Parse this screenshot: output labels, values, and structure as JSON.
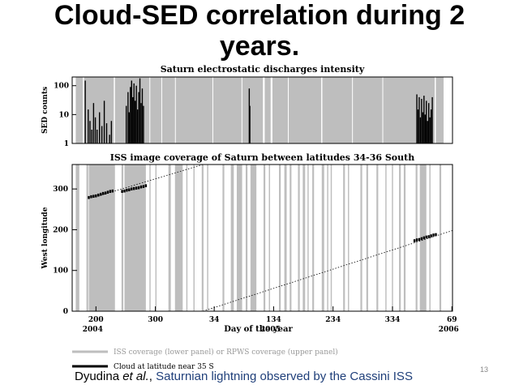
{
  "slide": {
    "title_line1": "Cloud-SED correlation during 2",
    "title_line2": "years.",
    "citation_author": "Dyudina",
    "citation_etal": "et al.",
    "citation_sep": ",",
    "citation_work": "Saturnian lightning observed by the Cassini ISS",
    "page_number": "13"
  },
  "colors": {
    "coverage": "#bebebe",
    "cloud": "#000000",
    "background": "#ffffff",
    "citation_accent": "#1f3f7a"
  },
  "chart_data": [
    {
      "type": "bar",
      "title": "Saturn electrostatic discharges intensity",
      "xlabel": "",
      "ylabel": "SED counts",
      "yscale": "log",
      "ylim": [
        1,
        200
      ],
      "yticks": [
        "1",
        "10",
        "100"
      ],
      "xlim": [
        160,
        800
      ],
      "notes": "day index counted from Jan 1 2004 (day 365 = 2005 day 1, day 730 = 2006 day 1); tick labels from lower panel",
      "coverage_gaps_days": [
        [
          160,
          166
        ],
        [
          178,
          180
        ],
        [
          230,
          232
        ],
        [
          290,
          291
        ],
        [
          310,
          311
        ],
        [
          333,
          334
        ],
        [
          396,
          397
        ],
        [
          445,
          446
        ],
        [
          481,
          484
        ],
        [
          494,
          497
        ],
        [
          523,
          524
        ],
        [
          579,
          581
        ],
        [
          631,
          632
        ],
        [
          682,
          683
        ],
        [
          770,
          772
        ],
        [
          785,
          800
        ]
      ],
      "series": [
        {
          "values_day": [
            [
              182,
              150
            ],
            [
              187,
              15
            ],
            [
              190,
              6
            ],
            [
              193,
              3
            ],
            [
              196,
              25
            ],
            [
              199,
              8
            ],
            [
              202,
              3
            ],
            [
              206,
              12
            ],
            [
              210,
              4
            ],
            [
              214,
              30
            ],
            [
              218,
              5
            ],
            [
              223,
              2
            ],
            [
              226,
              6
            ],
            [
              251,
              20
            ],
            [
              254,
              60
            ],
            [
              256,
              12
            ],
            [
              258,
              90
            ],
            [
              260,
              150
            ],
            [
              262,
              40
            ],
            [
              264,
              120
            ],
            [
              266,
              30
            ],
            [
              268,
              100
            ],
            [
              270,
              15
            ],
            [
              272,
              60
            ],
            [
              274,
              180
            ],
            [
              276,
              25
            ],
            [
              278,
              80
            ],
            [
              280,
              20
            ],
            [
              458,
              80
            ],
            [
              459,
              20
            ],
            [
              740,
              50
            ],
            [
              742,
              15
            ],
            [
              744,
              40
            ],
            [
              746,
              8
            ],
            [
              748,
              35
            ],
            [
              750,
              12
            ],
            [
              752,
              45
            ],
            [
              754,
              10
            ],
            [
              756,
              30
            ],
            [
              758,
              6
            ],
            [
              760,
              25
            ],
            [
              762,
              8
            ],
            [
              764,
              15
            ],
            [
              766,
              40
            ]
          ]
        }
      ]
    },
    {
      "type": "scatter",
      "title": "ISS image coverage of Saturn between latitudes 34-36 South",
      "xlabel": "Day of the year",
      "ylabel": "West longitude",
      "ylim": [
        0,
        360
      ],
      "yticks": [
        0,
        100,
        200,
        300
      ],
      "xlim": [
        160,
        800
      ],
      "xticks": [
        {
          "day": 200,
          "label": "200",
          "year": "2004"
        },
        {
          "day": 300,
          "label": "300",
          "year": ""
        },
        {
          "day": 399,
          "label": "34",
          "year": ""
        },
        {
          "day": 499,
          "label": "134",
          "year": "2005"
        },
        {
          "day": 599,
          "label": "234",
          "year": ""
        },
        {
          "day": 699,
          "label": "334",
          "year": ""
        },
        {
          "day": 799,
          "label": "69",
          "year": "2006"
        }
      ],
      "coverage_days": [
        [
          166,
          172
        ],
        [
          184,
          187
        ],
        [
          188,
          232
        ],
        [
          243,
          246
        ],
        [
          248,
          284
        ],
        [
          290,
          292
        ],
        [
          300,
          302
        ],
        [
          322,
          326
        ],
        [
          333,
          346
        ],
        [
          352,
          354
        ],
        [
          364,
          366
        ],
        [
          378,
          381
        ],
        [
          387,
          389
        ],
        [
          413,
          416
        ],
        [
          427,
          432
        ],
        [
          437,
          446
        ],
        [
          452,
          455
        ],
        [
          460,
          470
        ],
        [
          482,
          485
        ],
        [
          491,
          493
        ],
        [
          508,
          511
        ],
        [
          517,
          521
        ],
        [
          526,
          529
        ],
        [
          540,
          543
        ],
        [
          548,
          552
        ],
        [
          556,
          558
        ],
        [
          564,
          567
        ],
        [
          580,
          584
        ],
        [
          589,
          591
        ],
        [
          595,
          597
        ],
        [
          616,
          619
        ],
        [
          624,
          626
        ],
        [
          645,
          648
        ],
        [
          655,
          658
        ],
        [
          672,
          675
        ],
        [
          687,
          689
        ],
        [
          698,
          700
        ],
        [
          710,
          713
        ],
        [
          718,
          721
        ],
        [
          738,
          741
        ],
        [
          745,
          756
        ],
        [
          761,
          763
        ],
        [
          778,
          781
        ]
      ],
      "drift_lines": [
        {
          "from": [
            195,
            279
          ],
          "to": [
            380,
            360
          ]
        },
        {
          "from": [
            380,
            0
          ],
          "to": [
            800,
            198
          ]
        }
      ],
      "series": [
        {
          "points": [
            [
              188,
              279
            ],
            [
              192,
              281
            ],
            [
              196,
              282
            ],
            [
              200,
              283
            ],
            [
              204,
              285
            ],
            [
              208,
              287
            ],
            [
              212,
              289
            ],
            [
              216,
              290
            ],
            [
              220,
              292
            ],
            [
              224,
              294
            ],
            [
              228,
              295
            ],
            [
              244,
              294
            ],
            [
              248,
              295
            ],
            [
              252,
              297
            ],
            [
              256,
              298
            ],
            [
              260,
              300
            ],
            [
              264,
              301
            ],
            [
              268,
              302
            ],
            [
              272,
              303
            ],
            [
              276,
              305
            ],
            [
              280,
              306
            ],
            [
              284,
              308
            ],
            [
              736,
              173
            ],
            [
              740,
              175
            ],
            [
              744,
              176
            ],
            [
              748,
              178
            ],
            [
              752,
              180
            ],
            [
              756,
              182
            ],
            [
              760,
              183
            ],
            [
              764,
              185
            ],
            [
              768,
              187
            ],
            [
              772,
              188
            ]
          ]
        }
      ]
    }
  ],
  "legend": {
    "items": [
      {
        "label": "ISS coverage (lower panel) or RPWS coverage (upper panel)",
        "color": "#bebebe"
      },
      {
        "label": "Cloud at latitude near 35 S",
        "color": "#000000"
      }
    ]
  }
}
